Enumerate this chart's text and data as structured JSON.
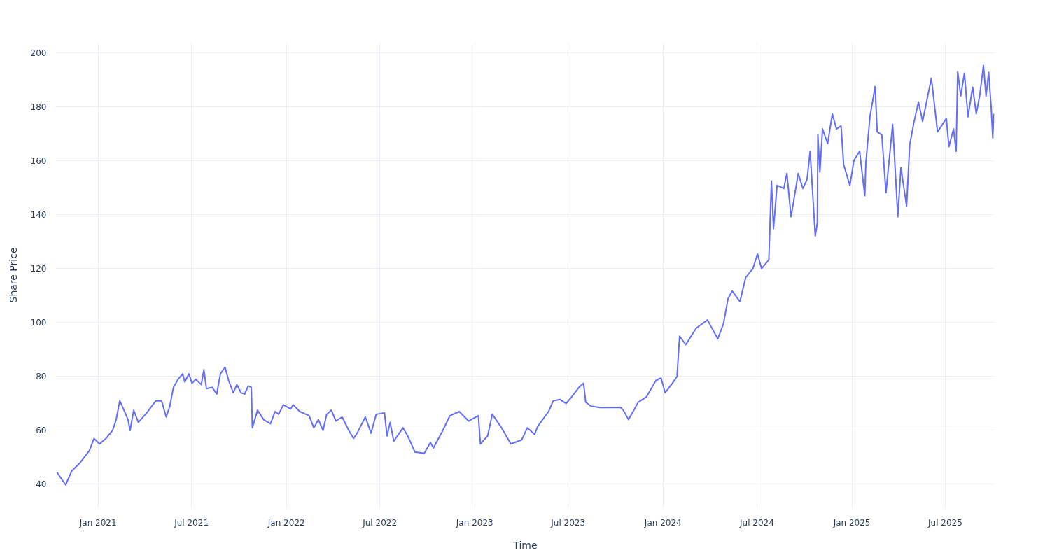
{
  "chart_data": {
    "type": "line",
    "xlabel": "Time",
    "ylabel": "Share Price",
    "xlim": [
      "2020-10-12",
      "2025-10-04"
    ],
    "ylim": [
      31.3,
      204
    ],
    "xticks": [
      {
        "value": "2021-01-01",
        "label": "Jan 2021"
      },
      {
        "value": "2021-07-01",
        "label": "Jul 2021"
      },
      {
        "value": "2022-01-01",
        "label": "Jan 2022"
      },
      {
        "value": "2022-07-01",
        "label": "Jul 2022"
      },
      {
        "value": "2023-01-01",
        "label": "Jan 2023"
      },
      {
        "value": "2023-07-01",
        "label": "Jul 2023"
      },
      {
        "value": "2024-01-01",
        "label": "Jan 2024"
      },
      {
        "value": "2024-07-01",
        "label": "Jul 2024"
      },
      {
        "value": "2025-01-01",
        "label": "Jan 2025"
      },
      {
        "value": "2025-07-01",
        "label": "Jul 2025"
      }
    ],
    "yticks": [
      40,
      60,
      80,
      100,
      120,
      140,
      160,
      180,
      200
    ],
    "grid": true,
    "line_style": "solid",
    "marker": "none",
    "x": [
      "2020-10-13",
      "2020-10-30",
      "2020-11-11",
      "2020-11-27",
      "2020-12-15",
      "2020-12-24",
      "2021-01-04",
      "2021-01-16",
      "2021-01-29",
      "2021-02-05",
      "2021-02-12",
      "2021-02-19",
      "2021-02-28",
      "2021-03-04",
      "2021-03-11",
      "2021-03-20",
      "2021-04-03",
      "2021-04-23",
      "2021-05-04",
      "2021-05-13",
      "2021-05-20",
      "2021-05-27",
      "2021-06-05",
      "2021-06-14",
      "2021-06-18",
      "2021-06-26",
      "2021-07-02",
      "2021-07-09",
      "2021-07-20",
      "2021-07-25",
      "2021-07-30",
      "2021-08-10",
      "2021-08-19",
      "2021-08-26",
      "2021-09-04",
      "2021-09-11",
      "2021-09-20",
      "2021-09-27",
      "2021-10-05",
      "2021-10-12",
      "2021-10-19",
      "2021-10-25",
      "2021-10-27",
      "2021-11-06",
      "2021-11-18",
      "2021-12-01",
      "2021-12-10",
      "2021-12-17",
      "2021-12-26",
      "2022-01-09",
      "2022-01-14",
      "2022-01-27",
      "2022-02-14",
      "2022-02-23",
      "2022-03-04",
      "2022-03-13",
      "2022-03-20",
      "2022-03-29",
      "2022-04-07",
      "2022-04-19",
      "2022-05-02",
      "2022-05-11",
      "2022-05-18",
      "2022-06-03",
      "2022-06-14",
      "2022-06-24",
      "2022-07-10",
      "2022-07-15",
      "2022-07-21",
      "2022-07-28",
      "2022-08-15",
      "2022-08-24",
      "2022-09-07",
      "2022-09-25",
      "2022-10-07",
      "2022-10-13",
      "2022-10-31",
      "2022-11-14",
      "2022-12-02",
      "2022-12-20",
      "2023-01-08",
      "2023-01-12",
      "2023-01-26",
      "2023-02-04",
      "2023-02-22",
      "2023-03-12",
      "2023-04-02",
      "2023-04-13",
      "2023-04-27",
      "2023-05-03",
      "2023-05-24",
      "2023-06-02",
      "2023-06-15",
      "2023-06-27",
      "2023-07-08",
      "2023-07-22",
      "2023-07-31",
      "2023-08-04",
      "2023-08-14",
      "2023-09-01",
      "2023-09-23",
      "2023-10-11",
      "2023-10-16",
      "2023-10-26",
      "2023-11-14",
      "2023-11-30",
      "2023-12-18",
      "2023-12-28",
      "2024-01-05",
      "2024-01-19",
      "2024-01-28",
      "2024-02-02",
      "2024-02-14",
      "2024-03-05",
      "2024-03-27",
      "2024-04-16",
      "2024-04-27",
      "2024-05-06",
      "2024-05-14",
      "2024-05-29",
      "2024-06-09",
      "2024-06-23",
      "2024-07-02",
      "2024-07-10",
      "2024-07-24",
      "2024-07-29",
      "2024-08-02",
      "2024-08-09",
      "2024-08-22",
      "2024-08-28",
      "2024-09-05",
      "2024-09-19",
      "2024-09-28",
      "2024-10-06",
      "2024-10-12",
      "2024-10-22",
      "2024-10-26",
      "2024-10-27",
      "2024-10-31",
      "2024-11-05",
      "2024-11-15",
      "2024-11-24",
      "2024-12-02",
      "2024-12-11",
      "2024-12-16",
      "2024-12-28",
      "2025-01-05",
      "2025-01-16",
      "2025-01-26",
      "2025-01-28",
      "2025-02-05",
      "2025-02-15",
      "2025-02-19",
      "2025-02-28",
      "2025-03-08",
      "2025-03-21",
      "2025-03-31",
      "2025-04-06",
      "2025-04-17",
      "2025-04-23",
      "2025-05-01",
      "2025-05-10",
      "2025-05-18",
      "2025-06-04",
      "2025-06-16",
      "2025-07-03",
      "2025-07-08",
      "2025-07-17",
      "2025-07-22",
      "2025-07-25",
      "2025-07-31",
      "2025-08-07",
      "2025-08-14",
      "2025-08-23",
      "2025-08-30",
      "2025-09-06",
      "2025-09-13",
      "2025-09-18",
      "2025-09-23",
      "2025-09-28",
      "2025-10-01",
      "2025-10-03"
    ],
    "series": [
      {
        "color": "#636efa",
        "values": [
          44.5,
          39.8,
          45,
          48,
          52.5,
          57,
          55,
          57,
          60,
          64,
          71,
          68,
          64,
          60,
          67.5,
          63,
          66,
          71,
          71,
          65,
          69,
          76,
          79,
          81,
          78,
          81,
          77.5,
          79,
          77,
          82.5,
          75.5,
          76,
          73.5,
          81,
          83.5,
          78.5,
          74,
          77,
          74,
          73.5,
          76.5,
          76,
          61,
          67.5,
          64,
          62.5,
          67,
          66,
          69.5,
          68,
          69.5,
          67,
          65.5,
          61,
          64,
          60,
          66,
          67.5,
          63.5,
          65,
          60,
          57,
          59,
          65,
          59,
          66,
          66.5,
          58,
          63,
          56,
          61,
          58,
          52,
          51.5,
          55.5,
          53.5,
          60,
          65.5,
          67,
          63.5,
          65.5,
          55,
          58,
          66,
          61,
          55,
          56.5,
          61,
          58.5,
          61.5,
          67,
          71,
          71.5,
          70,
          72.5,
          76,
          77.5,
          70.5,
          69,
          68.5,
          68.5,
          68.5,
          67.5,
          64,
          70.5,
          72.5,
          78.5,
          79.5,
          74,
          77.5,
          80,
          95,
          91.8,
          97.9,
          101,
          94,
          99.6,
          109,
          111.7,
          107.8,
          116.7,
          120,
          125.5,
          120,
          123.3,
          152.6,
          134.9,
          151,
          149.8,
          155.4,
          139.3,
          155.4,
          149.8,
          153.1,
          163.6,
          132.2,
          137.2,
          169.7,
          155.9,
          171.9,
          166.4,
          177.5,
          171.9,
          173,
          158.7,
          150.9,
          160.3,
          163.6,
          147.1,
          159.2,
          176.4,
          187.6,
          170.8,
          169.7,
          148.2,
          173.6,
          139.3,
          157.6,
          143.2,
          165.9,
          174.1,
          181.9,
          174.7,
          190.7,
          170.8,
          175.8,
          165.3,
          171.9,
          163.6,
          193.1,
          184.1,
          192.6,
          176.4,
          187.4,
          177.5,
          184.6,
          195.4,
          184.1,
          192.9,
          179.7,
          168.6,
          177.5
        ]
      }
    ]
  }
}
